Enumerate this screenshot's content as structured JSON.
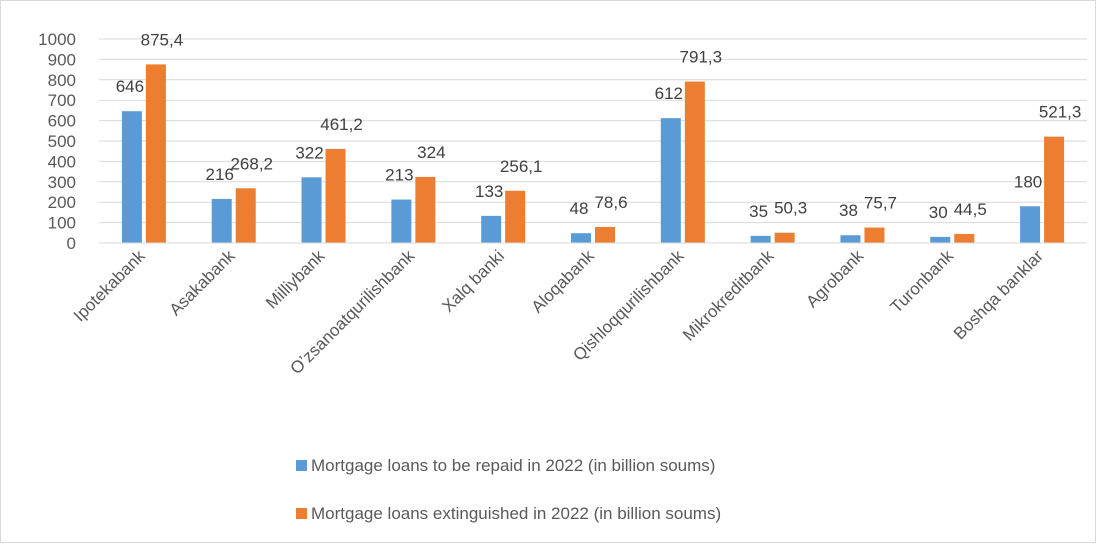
{
  "chart_data": {
    "type": "bar",
    "categories": [
      "Ipotekabank",
      "Asakabank",
      "Milliybank",
      "O’zsanoatqurilishbank",
      "Xalq banki",
      "Aloqabank",
      "Qishloqqurilishbank",
      "Mikrokreditbank",
      "Agrobank",
      "Turonbank",
      "Boshqa banklar"
    ],
    "series": [
      {
        "name": "Mortgage loans to be repaid in 2022 (in billion soums)",
        "values": [
          646,
          216,
          322,
          213,
          133,
          48,
          612,
          35,
          38,
          30,
          180
        ],
        "labels": [
          "646",
          "216",
          "322",
          "213",
          "133",
          "48",
          "612",
          "35",
          "38",
          "30",
          "180"
        ],
        "color": "#5b9bd5"
      },
      {
        "name": "Mortgage loans extinguished in 2022 (in billion soums)",
        "values": [
          875.4,
          268.2,
          461.2,
          324,
          256.1,
          78.6,
          791.3,
          50.3,
          75.7,
          44.5,
          521.3
        ],
        "labels": [
          "875,4",
          "268,2",
          "461,2",
          "324",
          "256,1",
          "78,6",
          "791,3",
          "50,3",
          "75,7",
          "44,5",
          "521,3"
        ],
        "color": "#ed7d31"
      }
    ],
    "y_ticks": [
      "0",
      "100",
      "200",
      "300",
      "400",
      "500",
      "600",
      "700",
      "800",
      "900",
      "1000"
    ],
    "ylim": [
      0,
      1000
    ],
    "grid": true,
    "legend_position": "bottom"
  }
}
